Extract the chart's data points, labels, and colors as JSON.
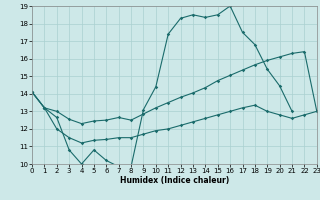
{
  "bg_color": "#cde8e8",
  "grid_color": "#aad0d0",
  "line_color": "#1a6b6b",
  "xlabel": "Humidex (Indice chaleur)",
  "xlim": [
    0,
    23
  ],
  "ylim": [
    10,
    19
  ],
  "xticks": [
    0,
    1,
    2,
    3,
    4,
    5,
    6,
    7,
    8,
    9,
    10,
    11,
    12,
    13,
    14,
    15,
    16,
    17,
    18,
    19,
    20,
    21,
    22,
    23
  ],
  "yticks": [
    10,
    11,
    12,
    13,
    14,
    15,
    16,
    17,
    18,
    19
  ],
  "line1_x": [
    0,
    1,
    2,
    3,
    4,
    5,
    6,
    7,
    8,
    9,
    10,
    11,
    12,
    13,
    14,
    15,
    16,
    17,
    18,
    19,
    20,
    21
  ],
  "line1_y": [
    14.1,
    13.2,
    12.65,
    10.8,
    10.0,
    10.8,
    10.2,
    9.85,
    9.85,
    13.1,
    14.4,
    17.4,
    18.3,
    18.5,
    18.35,
    18.5,
    19.0,
    17.5,
    16.8,
    15.4,
    14.45,
    13.0
  ],
  "line2_x": [
    0,
    1,
    2,
    3,
    4,
    5,
    6,
    7,
    8,
    9,
    10,
    11,
    12,
    13,
    14,
    15,
    16,
    17,
    18,
    19,
    20,
    21,
    22,
    23
  ],
  "line2_y": [
    14.1,
    13.2,
    13.0,
    12.55,
    12.3,
    12.45,
    12.5,
    12.65,
    12.5,
    12.85,
    13.2,
    13.5,
    13.8,
    14.05,
    14.35,
    14.75,
    15.05,
    15.35,
    15.65,
    15.9,
    16.1,
    16.3,
    16.4,
    13.0
  ],
  "line3_x": [
    0,
    1,
    2,
    3,
    4,
    5,
    6,
    7,
    8,
    9,
    10,
    11,
    12,
    13,
    14,
    15,
    16,
    17,
    18,
    19,
    20,
    21,
    22,
    23
  ],
  "line3_y": [
    14.1,
    13.2,
    12.0,
    11.5,
    11.2,
    11.35,
    11.4,
    11.5,
    11.5,
    11.7,
    11.9,
    12.0,
    12.2,
    12.4,
    12.6,
    12.8,
    13.0,
    13.2,
    13.35,
    13.0,
    12.8,
    12.6,
    12.8,
    13.0
  ]
}
